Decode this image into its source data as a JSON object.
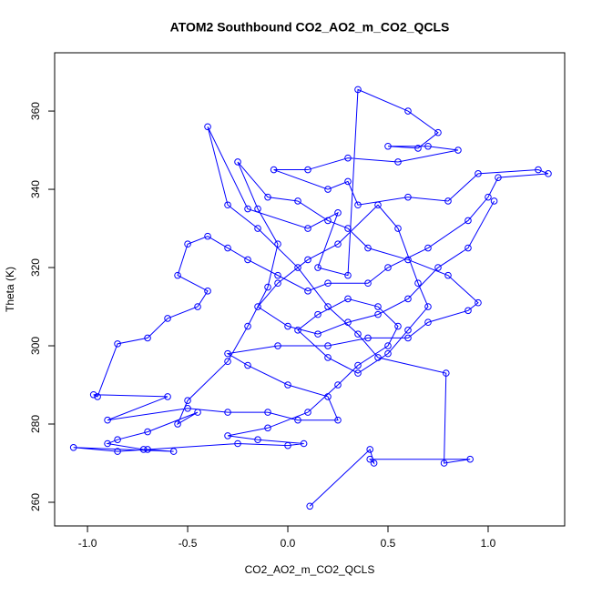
{
  "chart_data": {
    "type": "line",
    "title": "ATOM2 Southbound CO2_AO2_m_CO2_QCLS",
    "x_label": "CO2_AO2_m_CO2_QCLS",
    "y_label": "Theta (K)",
    "color": "#0000ff",
    "xlim": [
      -1.164,
      1.382
    ],
    "ylim": [
      253.95,
      374.9
    ],
    "xticks": [
      {
        "value": -1,
        "label": "-1.0"
      },
      -0.5,
      {
        "value": 0,
        "label": "0.0"
      },
      0.5,
      {
        "value": 1,
        "label": "1.0"
      }
    ],
    "yticks": [
      260,
      280,
      300,
      320,
      340,
      360
    ],
    "x": [
      0.11,
      0.41,
      0.43,
      0.41,
      0.91,
      0.78,
      0.79,
      0.45,
      0.35,
      0.2,
      0.05,
      -0.15,
      -0.3,
      -0.4,
      -0.2,
      0.1,
      0.25,
      0.15,
      0.3,
      0.35,
      0.6,
      0.75,
      0.65,
      0.5,
      0.7,
      0.85,
      0.55,
      0.3,
      0.1,
      -0.07,
      0.2,
      0.3,
      0.35,
      0.6,
      0.8,
      0.95,
      1.25,
      1.3,
      1.05,
      1.0,
      0.9,
      0.7,
      0.5,
      0.4,
      0.2,
      0.1,
      -0.05,
      -0.2,
      -0.3,
      -0.4,
      -0.5,
      -0.55,
      -0.4,
      -0.45,
      -0.6,
      -0.7,
      -0.85,
      -0.95,
      -0.97,
      -0.6,
      -0.9,
      -0.5,
      -0.3,
      -0.1,
      0.05,
      0.25,
      0.2,
      0.0,
      -0.2,
      -0.3,
      -0.05,
      0.2,
      0.4,
      0.6,
      0.7,
      0.9,
      0.95,
      0.8,
      0.6,
      0.4,
      0.3,
      0.2,
      0.05,
      -0.1,
      -0.25,
      -0.15,
      -0.05,
      -0.1,
      -0.2,
      -0.3,
      -0.5,
      -0.55,
      -0.45,
      -0.7,
      -0.85,
      -0.9,
      -0.72,
      -0.57,
      -1.07,
      -0.85,
      -0.7,
      -0.25,
      0.0,
      0.08,
      -0.15,
      -0.3,
      -0.1,
      0.1,
      0.25,
      0.35,
      0.5,
      0.55,
      0.45,
      0.3,
      0.15,
      0.05,
      0.2,
      0.35,
      0.5,
      0.6,
      0.7,
      0.65,
      0.55,
      0.45,
      0.25,
      0.1,
      -0.05,
      -0.15,
      0.0,
      0.15,
      0.3,
      0.45,
      0.6,
      0.75,
      0.9,
      1.03
    ],
    "values": [
      259,
      273.5,
      270,
      271,
      271,
      270,
      293,
      297,
      303,
      310,
      320,
      330,
      336,
      356,
      335,
      330,
      334,
      320,
      318,
      365.5,
      360,
      354.5,
      350.5,
      351,
      351,
      350,
      347,
      348,
      345,
      345,
      340,
      342,
      336,
      338,
      337,
      344,
      345,
      344,
      343,
      338,
      332,
      325,
      320,
      316,
      316,
      314,
      318,
      322,
      325,
      328,
      326,
      318,
      314,
      310,
      307,
      302,
      300.5,
      287,
      287.5,
      287,
      281,
      284,
      283,
      283,
      281,
      281,
      287,
      290,
      295,
      298,
      300,
      300,
      302,
      302,
      306,
      309,
      311,
      318,
      322,
      325,
      330,
      332,
      337,
      338,
      347,
      335,
      326,
      315,
      305,
      296,
      286,
      280,
      283,
      278,
      276,
      275,
      273.5,
      273,
      274,
      273,
      273.5,
      275,
      274.5,
      275,
      276,
      277,
      279,
      283,
      290,
      295,
      300,
      305,
      310,
      312,
      308,
      304,
      297,
      293,
      298,
      304,
      310,
      316,
      330,
      336,
      326,
      322,
      316,
      310,
      305,
      303,
      306,
      308,
      312,
      320,
      325,
      337
    ]
  }
}
